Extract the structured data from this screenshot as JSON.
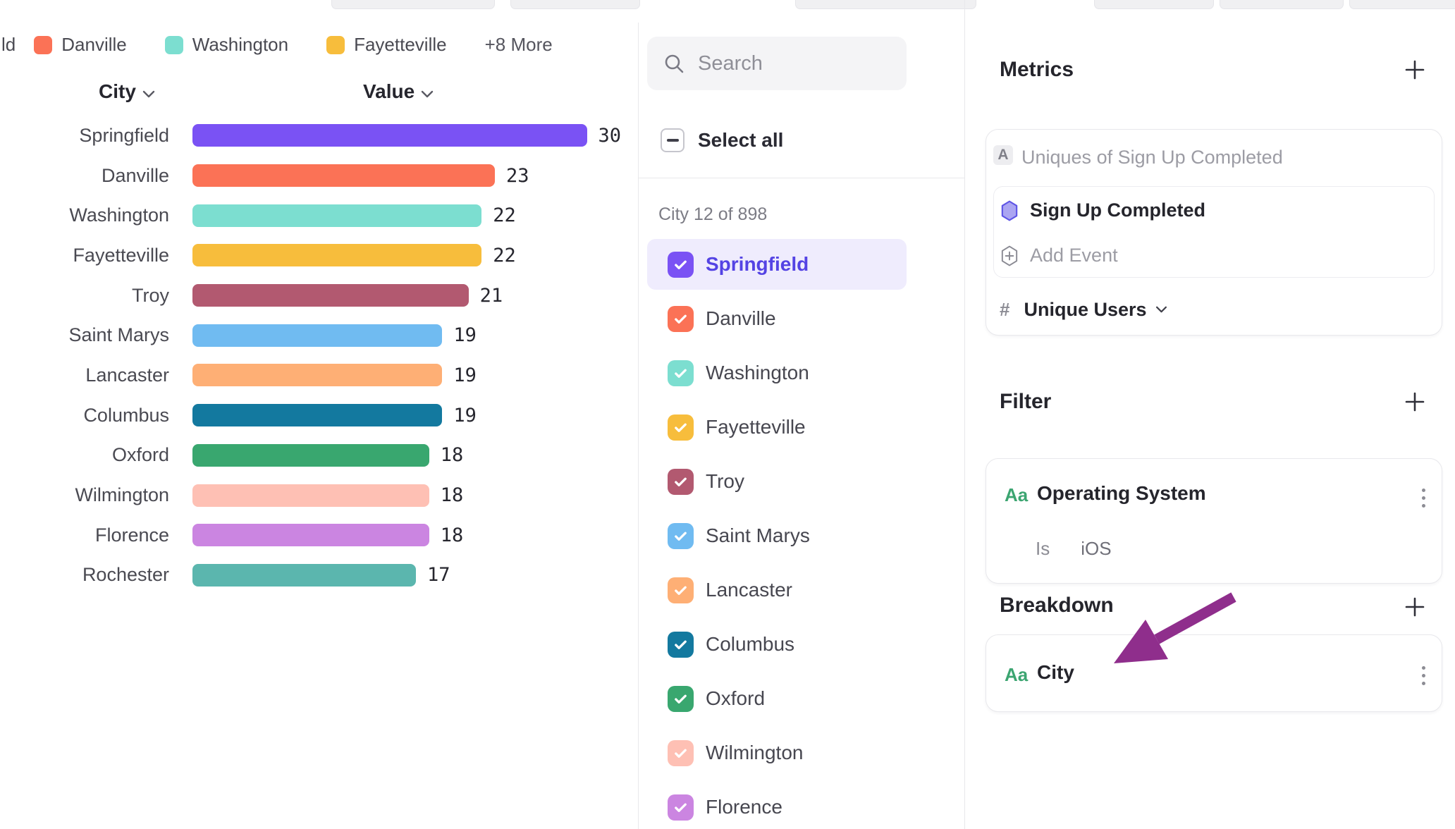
{
  "chart": {
    "legend": {
      "clipped_label": "ld",
      "items": [
        {
          "label": "Danville",
          "color": "#FB7256"
        },
        {
          "label": "Washington",
          "color": "#7CDED0"
        },
        {
          "label": "Fayetteville",
          "color": "#F7BD3C"
        }
      ],
      "more_label": "+8 More"
    },
    "columns": {
      "city": "City",
      "value": "Value"
    }
  },
  "chart_data": {
    "type": "bar",
    "orientation": "horizontal",
    "title": "",
    "xlabel": "Value",
    "ylabel": "City",
    "value_labels_shown": true,
    "xlim": [
      0,
      30
    ],
    "categories": [
      "Springfield",
      "Danville",
      "Washington",
      "Fayetteville",
      "Troy",
      "Saint Marys",
      "Lancaster",
      "Columbus",
      "Oxford",
      "Wilmington",
      "Florence",
      "Rochester"
    ],
    "values": [
      30,
      23,
      22,
      22,
      21,
      19,
      19,
      19,
      18,
      18,
      18,
      17
    ],
    "colors": [
      "#7A52F4",
      "#FB7256",
      "#7CDED0",
      "#F7BD3C",
      "#B25970",
      "#70BBF1",
      "#FEAF75",
      "#13799F",
      "#39A76F",
      "#FEC0B4",
      "#CB85E1",
      "#5BB6AE"
    ]
  },
  "list_panel": {
    "search_placeholder": "Search",
    "select_all_label": "Select all",
    "count_label": "City 12 of 898",
    "items": [
      {
        "label": "Springfield",
        "color": "#7A52F4",
        "checked": true,
        "highlighted": true
      },
      {
        "label": "Danville",
        "color": "#FB7256",
        "checked": true,
        "highlighted": false
      },
      {
        "label": "Washington",
        "color": "#7CDED0",
        "checked": true,
        "highlighted": false
      },
      {
        "label": "Fayetteville",
        "color": "#F7BD3C",
        "checked": true,
        "highlighted": false
      },
      {
        "label": "Troy",
        "color": "#B25970",
        "checked": true,
        "highlighted": false
      },
      {
        "label": "Saint Marys",
        "color": "#70BBF1",
        "checked": true,
        "highlighted": false
      },
      {
        "label": "Lancaster",
        "color": "#FEAF75",
        "checked": true,
        "highlighted": false
      },
      {
        "label": "Columbus",
        "color": "#13799F",
        "checked": true,
        "highlighted": false
      },
      {
        "label": "Oxford",
        "color": "#39A76F",
        "checked": true,
        "highlighted": false
      },
      {
        "label": "Wilmington",
        "color": "#FEC0B4",
        "checked": true,
        "highlighted": false
      },
      {
        "label": "Florence",
        "color": "#CB85E1",
        "checked": true,
        "highlighted": false
      }
    ]
  },
  "metrics": {
    "title": "Metrics",
    "row_badge": "A",
    "row_label": "Uniques of Sign Up Completed",
    "event_name": "Sign Up Completed",
    "add_event_label": "Add Event",
    "measure_hash": "#",
    "measure_label": "Unique Users"
  },
  "filter": {
    "title": "Filter",
    "type_badge": "Aa",
    "property": "Operating System",
    "operator": "Is",
    "value": "iOS"
  },
  "breakdown": {
    "title": "Breakdown",
    "type_badge": "Aa",
    "property": "City"
  },
  "annotation": {
    "arrow_color": "#8F2E8C"
  }
}
